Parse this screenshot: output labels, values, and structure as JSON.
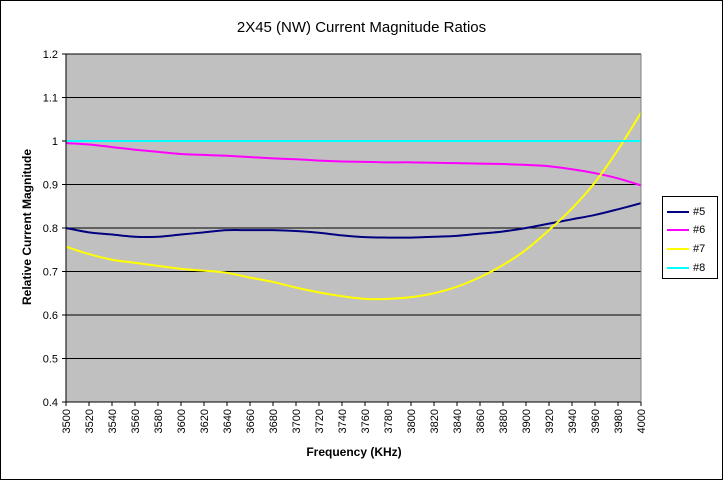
{
  "chart_data": {
    "type": "line",
    "title": "2X45 (NW) Current Magnitude Ratios",
    "xlabel": "Frequency (KHz)",
    "ylabel": "Relative Current Magnitude",
    "ylim": [
      0.4,
      1.2
    ],
    "y_ticks": [
      "0.4",
      "0.5",
      "0.6",
      "0.7",
      "0.8",
      "0.9",
      "1",
      "1.1",
      "1.2"
    ],
    "grid": "horizontal",
    "legend_position": "right",
    "plot_background": "#C0C0C0",
    "x": [
      "3500",
      "3520",
      "3540",
      "3560",
      "3580",
      "3600",
      "3620",
      "3640",
      "3660",
      "3680",
      "3700",
      "3720",
      "3740",
      "3760",
      "3780",
      "3800",
      "3820",
      "3840",
      "3860",
      "3880",
      "3900",
      "3920",
      "3940",
      "3960",
      "3980",
      "4000"
    ],
    "series": [
      {
        "name": "#5",
        "color": "#000080",
        "values": [
          0.8,
          0.79,
          0.785,
          0.78,
          0.78,
          0.785,
          0.79,
          0.795,
          0.795,
          0.795,
          0.793,
          0.789,
          0.783,
          0.779,
          0.778,
          0.778,
          0.78,
          0.782,
          0.787,
          0.792,
          0.8,
          0.81,
          0.82,
          0.83,
          0.843,
          0.857
        ]
      },
      {
        "name": "#6",
        "color": "#FF00FF",
        "values": [
          0.995,
          0.992,
          0.986,
          0.98,
          0.975,
          0.97,
          0.968,
          0.966,
          0.963,
          0.96,
          0.958,
          0.955,
          0.953,
          0.952,
          0.951,
          0.951,
          0.95,
          0.949,
          0.948,
          0.947,
          0.945,
          0.942,
          0.935,
          0.926,
          0.914,
          0.898
        ]
      },
      {
        "name": "#7",
        "color": "#FFFF00",
        "values": [
          0.757,
          0.74,
          0.727,
          0.72,
          0.713,
          0.706,
          0.702,
          0.697,
          0.686,
          0.676,
          0.663,
          0.652,
          0.643,
          0.637,
          0.637,
          0.641,
          0.65,
          0.665,
          0.687,
          0.715,
          0.75,
          0.795,
          0.845,
          0.905,
          0.98,
          1.065
        ]
      },
      {
        "name": "#8",
        "color": "#00FFFF",
        "values": [
          1.0,
          1.0,
          1.0,
          1.0,
          1.0,
          1.0,
          1.0,
          1.0,
          1.0,
          1.0,
          1.0,
          1.0,
          1.0,
          1.0,
          1.0,
          1.0,
          1.0,
          1.0,
          1.0,
          1.0,
          1.0,
          1.0,
          1.0,
          1.0,
          1.0,
          1.0
        ]
      }
    ]
  }
}
